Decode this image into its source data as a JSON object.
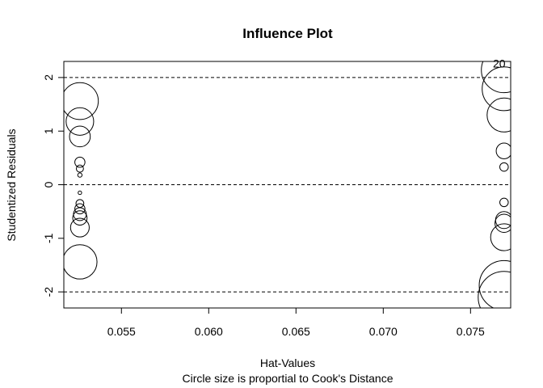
{
  "chart_data": {
    "type": "scatter",
    "title": "Influence Plot",
    "xlabel": "Hat-Values",
    "subtitle": "Circle size is proportial to Cook's Distance",
    "ylabel": "Studentized Residuals",
    "xlim": [
      0.0517,
      0.0773
    ],
    "ylim": [
      -2.3,
      2.3
    ],
    "xticks": [
      0.055,
      0.06,
      0.065,
      0.07,
      0.075
    ],
    "xtick_labels": [
      "0.055",
      "0.060",
      "0.065",
      "0.070",
      "0.075"
    ],
    "yticks": [
      -2,
      -1,
      0,
      1,
      2
    ],
    "ytick_labels": [
      "-2",
      "-1",
      "0",
      "1",
      "2"
    ],
    "reference_lines_y": [
      -2,
      0,
      2
    ],
    "reference_line_style": "dashed",
    "grid": false,
    "size_encoding": "Cook's Distance",
    "points": [
      {
        "x": 0.05262,
        "y": 1.56,
        "size": 0.66
      },
      {
        "x": 0.05262,
        "y": 1.18,
        "size": 0.37
      },
      {
        "x": 0.05262,
        "y": 0.9,
        "size": 0.21
      },
      {
        "x": 0.05262,
        "y": 0.42,
        "size": 0.05
      },
      {
        "x": 0.05262,
        "y": 0.3,
        "size": 0.025
      },
      {
        "x": 0.05262,
        "y": 0.18,
        "size": 0.009
      },
      {
        "x": 0.05262,
        "y": -0.15,
        "size": 0.006
      },
      {
        "x": 0.05262,
        "y": -0.35,
        "size": 0.03
      },
      {
        "x": 0.05262,
        "y": -0.45,
        "size": 0.05
      },
      {
        "x": 0.05262,
        "y": -0.55,
        "size": 0.08
      },
      {
        "x": 0.05262,
        "y": -0.62,
        "size": 0.1
      },
      {
        "x": 0.05262,
        "y": -0.8,
        "size": 0.17
      },
      {
        "x": 0.05262,
        "y": -1.44,
        "size": 0.57
      },
      {
        "x": 0.07692,
        "y": 2.14,
        "size": 1.0
      },
      {
        "x": 0.07692,
        "y": 1.79,
        "size": 0.93
      },
      {
        "x": 0.07692,
        "y": 1.3,
        "size": 0.56
      },
      {
        "x": 0.07692,
        "y": 0.63,
        "size": 0.12
      },
      {
        "x": 0.07692,
        "y": 0.33,
        "size": 0.035
      },
      {
        "x": 0.07692,
        "y": -0.33,
        "size": 0.035
      },
      {
        "x": 0.07692,
        "y": -0.66,
        "size": 0.14
      },
      {
        "x": 0.07692,
        "y": -0.72,
        "size": 0.16
      },
      {
        "x": 0.07692,
        "y": -0.98,
        "size": 0.35
      },
      {
        "x": 0.07692,
        "y": -1.88,
        "size": 1.2
      },
      {
        "x": 0.07692,
        "y": -2.1,
        "size": 1.3
      }
    ],
    "point_labels": [
      {
        "text": "20",
        "x": 0.07692,
        "y": 2.14
      }
    ]
  }
}
